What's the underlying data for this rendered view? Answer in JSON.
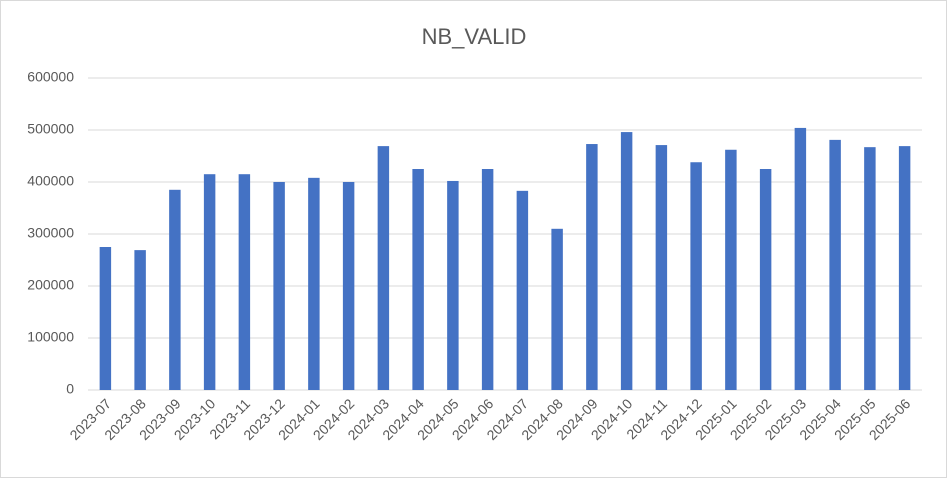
{
  "chart_data": {
    "type": "bar",
    "title": "NB_VALID",
    "categories": [
      "2023-07",
      "2023-08",
      "2023-09",
      "2023-10",
      "2023-11",
      "2023-12",
      "2024-01",
      "2024-02",
      "2024-03",
      "2024-04",
      "2024-05",
      "2024-06",
      "2024-07",
      "2024-08",
      "2024-09",
      "2024-10",
      "2024-11",
      "2024-12",
      "2025-01",
      "2025-02",
      "2025-03",
      "2025-04",
      "2025-05",
      "2025-06"
    ],
    "values": [
      275000,
      269000,
      385000,
      415000,
      415000,
      400000,
      408000,
      400000,
      469000,
      425000,
      402000,
      425000,
      383000,
      310000,
      473000,
      496000,
      471000,
      438000,
      462000,
      425000,
      504000,
      481000,
      467000,
      469000
    ],
    "color": "#4472c4",
    "ylim": [
      0,
      600000
    ],
    "yticks": [
      0,
      100000,
      200000,
      300000,
      400000,
      500000,
      600000
    ],
    "grid": true
  }
}
